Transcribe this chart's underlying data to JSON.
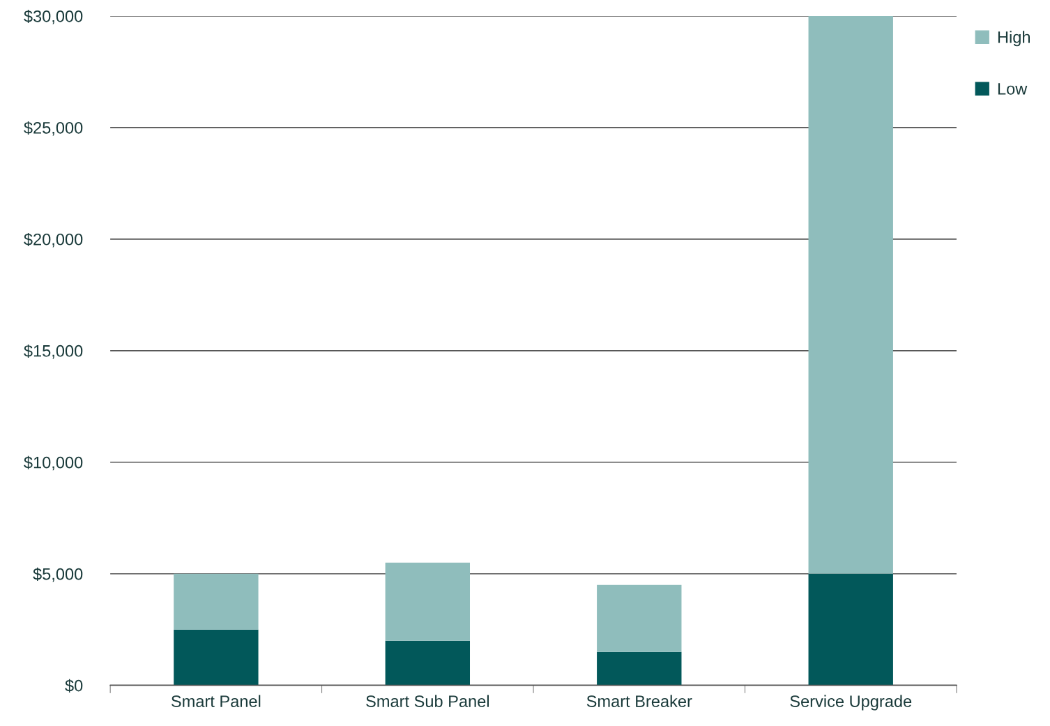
{
  "chart_data": {
    "type": "bar",
    "stacked": true,
    "categories": [
      "Smart Panel",
      "Smart Sub Panel",
      "Smart Breaker",
      "Service Upgrade"
    ],
    "series": [
      {
        "name": "Low",
        "color": "#02585a",
        "values": [
          2500,
          2000,
          1500,
          5000
        ]
      },
      {
        "name": "High",
        "color": "#8fbdbc",
        "values": [
          2500,
          3500,
          3000,
          25000
        ]
      }
    ],
    "ylim": [
      0,
      30000
    ],
    "yticks": [
      {
        "value": 0,
        "label": "$0"
      },
      {
        "value": 5000,
        "label": "$5,000"
      },
      {
        "value": 10000,
        "label": "$10,000"
      },
      {
        "value": 15000,
        "label": "$15,000"
      },
      {
        "value": 20000,
        "label": "$20,000"
      },
      {
        "value": 25000,
        "label": "$25,000"
      },
      {
        "value": 30000,
        "label": "$30,000"
      }
    ],
    "grid": "y",
    "legend": "top right"
  }
}
